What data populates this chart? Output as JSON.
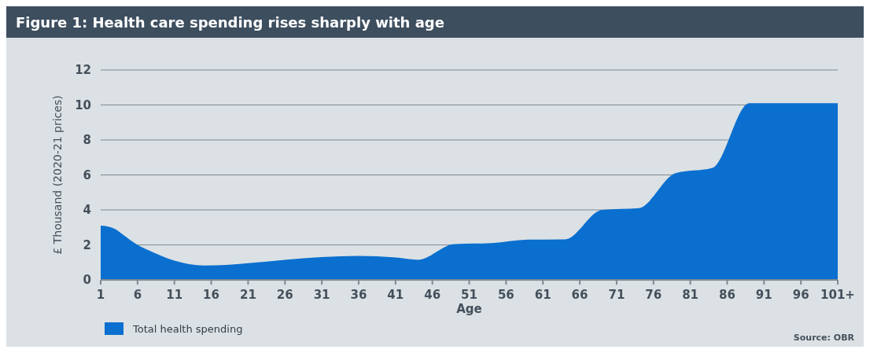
{
  "chart_data": {
    "type": "area",
    "title": "Figure 1: Health care spending rises sharply with age",
    "xlabel": "Age",
    "ylabel": "£ Thousand (2020-21 prices)",
    "x": [
      1,
      2,
      3,
      4,
      6,
      8,
      11,
      13,
      15,
      18,
      21,
      26,
      31,
      36,
      41,
      44,
      49,
      54,
      59,
      64,
      69,
      74,
      79,
      84,
      89,
      101
    ],
    "series": [
      {
        "name": "Total health spending",
        "color": "#0a6fcf",
        "values": [
          3.1,
          3.05,
          2.9,
          2.6,
          2.0,
          1.6,
          1.1,
          0.9,
          0.82,
          0.85,
          0.95,
          1.15,
          1.3,
          1.37,
          1.28,
          1.15,
          2.05,
          2.1,
          2.3,
          2.32,
          4.0,
          4.1,
          6.1,
          6.4,
          10.1,
          10.1
        ]
      }
    ],
    "xlim": [
      1,
      101
    ],
    "xticks": [
      1,
      6,
      11,
      16,
      21,
      26,
      31,
      36,
      41,
      46,
      51,
      56,
      61,
      66,
      71,
      76,
      81,
      86,
      91,
      96,
      {
        "value": 101,
        "label": "101+"
      }
    ],
    "ylim": [
      0,
      12
    ],
    "yticks": [
      0,
      2,
      4,
      6,
      8,
      10,
      12
    ],
    "grid": "y",
    "legend": "bottom left",
    "annotations": [
      "Source: OBR"
    ]
  }
}
